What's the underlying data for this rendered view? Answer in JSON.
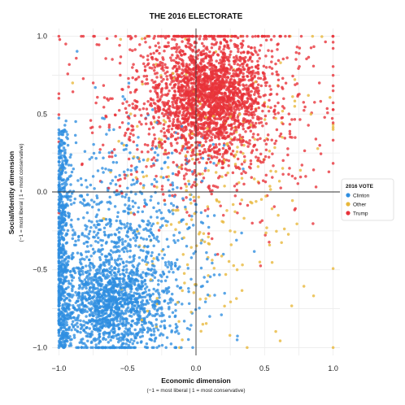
{
  "chart_data": {
    "type": "scatter",
    "title": "THE 2016 ELECTORATE",
    "xlabel": "Economic dimension",
    "xlabel_note": "(−1 = most liberal | 1 = most conservative)",
    "ylabel": "Social/Identity dimension",
    "ylabel_note": "(−1 = most liberal | 1 = most conservative)",
    "xlim": [
      -1.05,
      1.05
    ],
    "ylim": [
      -1.05,
      1.05
    ],
    "xticks": [
      -1.0,
      -0.5,
      0.0,
      0.5,
      1.0
    ],
    "yticks": [
      -1.0,
      -0.5,
      0.0,
      0.5,
      1.0
    ],
    "xtick_labels": [
      "−1.0",
      "−0.5",
      "0.0",
      "0.5",
      "1.0"
    ],
    "ytick_labels": [
      "−1.0",
      "−0.5",
      "0.0",
      "0.5",
      "1.0"
    ],
    "grid": true,
    "legend": {
      "title": "2016 VOTE",
      "placement": "right"
    },
    "series": [
      {
        "name": "Clinton",
        "color": "#2f8ee0",
        "approx_count": 3200,
        "points": [
          [
            -1.0,
            0.38
          ],
          [
            -1.0,
            -0.05
          ],
          [
            -1.0,
            -0.45
          ],
          [
            -1.0,
            -0.9
          ],
          [
            -0.95,
            0.2
          ],
          [
            -0.9,
            -0.3
          ],
          [
            -0.85,
            -0.6
          ],
          [
            -0.8,
            -0.8
          ],
          [
            -0.75,
            0.1
          ],
          [
            -0.7,
            -0.7
          ],
          [
            -0.65,
            -0.5
          ],
          [
            -0.6,
            -0.85
          ],
          [
            -0.55,
            -0.2
          ],
          [
            -0.5,
            -0.6
          ],
          [
            -0.45,
            0.05
          ],
          [
            -0.4,
            -0.75
          ],
          [
            -0.35,
            -0.35
          ],
          [
            -0.3,
            -0.55
          ],
          [
            -0.25,
            0.15
          ],
          [
            -0.2,
            -0.45
          ],
          [
            -0.15,
            -0.9
          ],
          [
            -0.1,
            -0.3
          ],
          [
            -0.05,
            0.05
          ],
          [
            0.0,
            -0.6
          ],
          [
            0.05,
            -0.2
          ],
          [
            0.1,
            -0.8
          ],
          [
            0.2,
            -0.4
          ],
          [
            0.3,
            -0.95
          ],
          [
            0.05,
            0.35
          ],
          [
            -0.6,
            0.4
          ]
        ]
      },
      {
        "name": "Other",
        "color": "#e8b73a",
        "approx_count": 400,
        "points": [
          [
            -0.9,
            0.7
          ],
          [
            -0.55,
            0.98
          ],
          [
            -0.2,
            0.1
          ],
          [
            0.15,
            -0.05
          ],
          [
            0.3,
            -0.5
          ],
          [
            0.45,
            0.2
          ],
          [
            0.6,
            -0.15
          ],
          [
            0.72,
            0.55
          ],
          [
            0.82,
            0.62
          ],
          [
            0.85,
            1.0
          ],
          [
            -0.1,
            -0.95
          ],
          [
            0.05,
            -0.85
          ],
          [
            0.35,
            0.3
          ],
          [
            0.25,
            -0.25
          ],
          [
            1.0,
            -1.0
          ]
        ]
      },
      {
        "name": "Trump",
        "color": "#e8333a",
        "approx_count": 3400,
        "points": [
          [
            -0.95,
            0.95
          ],
          [
            -0.75,
            0.7
          ],
          [
            -0.5,
            0.4
          ],
          [
            -0.3,
            0.8
          ],
          [
            -0.15,
            0.5
          ],
          [
            0.0,
            0.6
          ],
          [
            0.1,
            0.9
          ],
          [
            0.2,
            0.45
          ],
          [
            0.3,
            0.75
          ],
          [
            0.4,
            0.2
          ],
          [
            0.5,
            0.55
          ],
          [
            0.6,
            0.95
          ],
          [
            0.7,
            0.35
          ],
          [
            0.8,
            0.1
          ],
          [
            0.9,
            0.7
          ],
          [
            1.0,
            0.65
          ],
          [
            0.35,
            0.05
          ],
          [
            0.2,
            -0.15
          ],
          [
            0.05,
            0.25
          ],
          [
            -0.05,
            0.98
          ]
        ]
      }
    ]
  }
}
